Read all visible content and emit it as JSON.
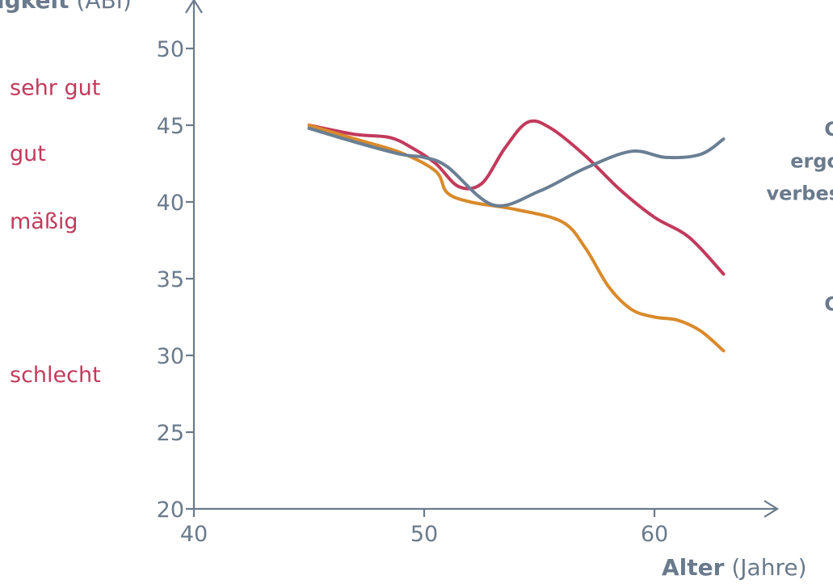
{
  "colors": {
    "axis": "#6a7a8c",
    "category_text": "#c23a5c",
    "series_red": "#c23a5c",
    "series_orange": "#d98a2b",
    "series_gray": "#6a7f94"
  },
  "chart_data": {
    "type": "line",
    "ylabel_bold": "igkeit",
    "ylabel_unit": "(ABI)",
    "xlabel_bold": "Alter",
    "xlabel_unit": "(Jahre)",
    "xlim": [
      40,
      64
    ],
    "ylim": [
      20,
      52
    ],
    "x_ticks": [
      40,
      50,
      60
    ],
    "y_ticks": [
      20,
      25,
      30,
      35,
      40,
      45,
      50
    ],
    "category_labels": [
      {
        "text": "sehr gut",
        "y": 47.5
      },
      {
        "text": "gut",
        "y": 43.2
      },
      {
        "text": "mäßig",
        "y": 38.8
      },
      {
        "text": "schlecht",
        "y": 28.8
      }
    ],
    "legend_fragments": [
      {
        "text": "G",
        "y": 44.8
      },
      {
        "text": "ergo",
        "y": 42.7
      },
      {
        "text": "verbes",
        "y": 40.6
      },
      {
        "text": "G",
        "y": 33.4
      }
    ],
    "series": [
      {
        "color": "#c23a5c",
        "x": [
          45,
          47,
          48.5,
          49.5,
          50.5,
          51.5,
          52.5,
          53.5,
          54.5,
          55.5,
          57,
          58.5,
          60,
          61.5,
          63
        ],
        "y": [
          45,
          44.4,
          44.2,
          43.5,
          42.5,
          41,
          41.2,
          43.5,
          45.2,
          44.8,
          43,
          40.8,
          39,
          37.7,
          35.3
        ]
      },
      {
        "color": "#d98a2b",
        "x": [
          45,
          47,
          49,
          50.5,
          51,
          52,
          54,
          56,
          57,
          58,
          59,
          60,
          61,
          62,
          63
        ],
        "y": [
          45,
          44.1,
          43.2,
          42,
          40.6,
          40,
          39.5,
          38.7,
          37,
          34.5,
          33,
          32.5,
          32.3,
          31.6,
          30.3
        ]
      },
      {
        "color": "#6a7f94",
        "x": [
          45,
          47,
          49,
          50,
          51,
          53,
          55,
          57,
          59,
          60.5,
          62,
          63
        ],
        "y": [
          44.8,
          43.9,
          43.1,
          42.9,
          42.3,
          39.8,
          40.7,
          42.2,
          43.3,
          42.9,
          43.1,
          44.1
        ]
      }
    ]
  }
}
